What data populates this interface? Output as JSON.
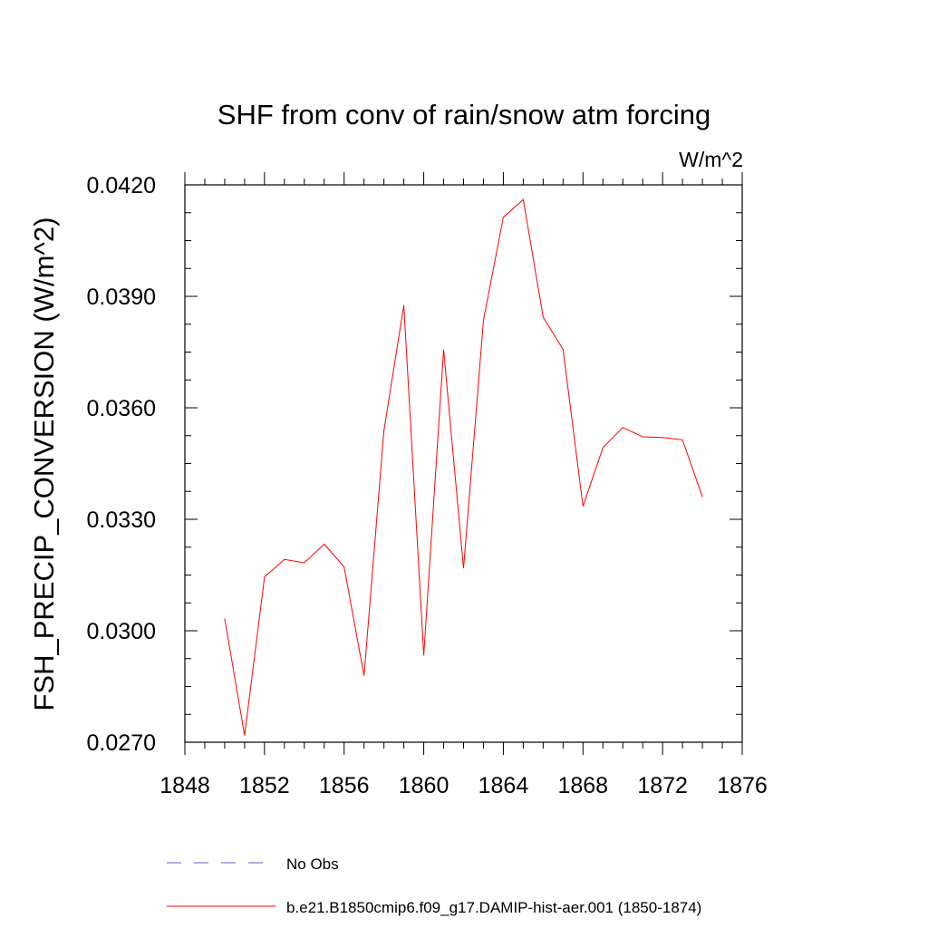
{
  "colors": {
    "series": "#ff0000",
    "obs": "#6a5acd",
    "axis": "#000000",
    "background": "#ffffff"
  },
  "chart_data": {
    "type": "line",
    "title": "SHF from conv of rain/snow atm forcing",
    "units": "W/m^2",
    "xlabel": "",
    "ylabel": "FSH_PRECIP_CONVERSION  (W/m^2)",
    "xlim": [
      1848,
      1876
    ],
    "ylim": [
      0.027,
      0.042
    ],
    "x_ticks": [
      1848,
      1852,
      1856,
      1860,
      1864,
      1868,
      1872,
      1876
    ],
    "x_tick_labels": [
      "1848",
      "1852",
      "1856",
      "1860",
      "1864",
      "1868",
      "1872",
      "1876"
    ],
    "y_ticks": [
      0.027,
      0.03,
      0.033,
      0.036,
      0.039,
      0.042
    ],
    "y_tick_labels": [
      "0.0270",
      "0.0300",
      "0.0330",
      "0.0360",
      "0.0390",
      "0.0420"
    ],
    "grid": false,
    "legend_position": "bottom",
    "series": [
      {
        "name": "b.e21.B1850cmip6.f09_g17.DAMIP-hist-aer.001 (1850-1874)",
        "style": "solid",
        "x": [
          1850,
          1851,
          1852,
          1853,
          1854,
          1855,
          1856,
          1857,
          1858,
          1859,
          1860,
          1861,
          1862,
          1863,
          1864,
          1865,
          1866,
          1867,
          1868,
          1869,
          1870,
          1871,
          1872,
          1873,
          1874
        ],
        "values": [
          0.03033,
          0.02718,
          0.03145,
          0.03192,
          0.03183,
          0.03233,
          0.03172,
          0.02879,
          0.03538,
          0.03876,
          0.02934,
          0.03757,
          0.03168,
          0.03836,
          0.04113,
          0.0416,
          0.03844,
          0.03757,
          0.03335,
          0.03493,
          0.03547,
          0.03522,
          0.0352,
          0.03514,
          0.0336
        ]
      }
    ],
    "legend": [
      {
        "label": "No Obs",
        "style": "dashed"
      },
      {
        "label": "b.e21.B1850cmip6.f09_g17.DAMIP-hist-aer.001 (1850-1874)",
        "style": "solid"
      }
    ]
  }
}
